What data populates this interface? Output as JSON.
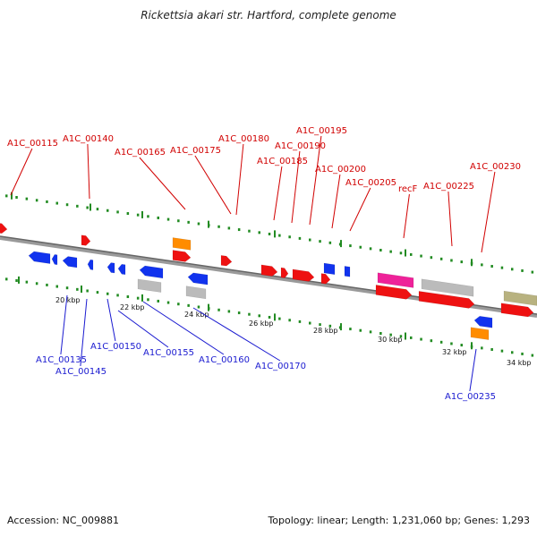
{
  "title": "Rickettsia akari str. Hartford, complete genome",
  "footer": {
    "accession": "Accession: NC_009881",
    "summary": "Topology: linear; Length: 1,231,060 bp; Genes: 1,293"
  },
  "colors": {
    "forward_gene": "#ee1111",
    "reverse_gene": "#1133ee",
    "rrna": "#ff8c00",
    "pseudo": "#bbbbbb",
    "recF": "#ee2299",
    "other": "#b8b280",
    "top_label": "#d10000",
    "bottom_label": "#1a1ad0",
    "dots": "#228b22",
    "backbone": "#7a7a7a"
  },
  "ticks": [
    "20 kbp",
    "22 kbp",
    "24 kbp",
    "26 kbp",
    "28 kbp",
    "30 kbp",
    "32 kbp",
    "34 kbp"
  ],
  "top_labels": [
    "A1C_00115",
    "A1C_00140",
    "A1C_00165",
    "A1C_00175",
    "A1C_00180",
    "A1C_00185",
    "A1C_00190",
    "A1C_00195",
    "A1C_00200",
    "A1C_00205",
    "recF",
    "A1C_00225",
    "A1C_00230"
  ],
  "bottom_labels": [
    "A1C_00135",
    "A1C_00145",
    "A1C_00150",
    "A1C_00155",
    "A1C_00160",
    "A1C_00170",
    "A1C_00235"
  ]
}
